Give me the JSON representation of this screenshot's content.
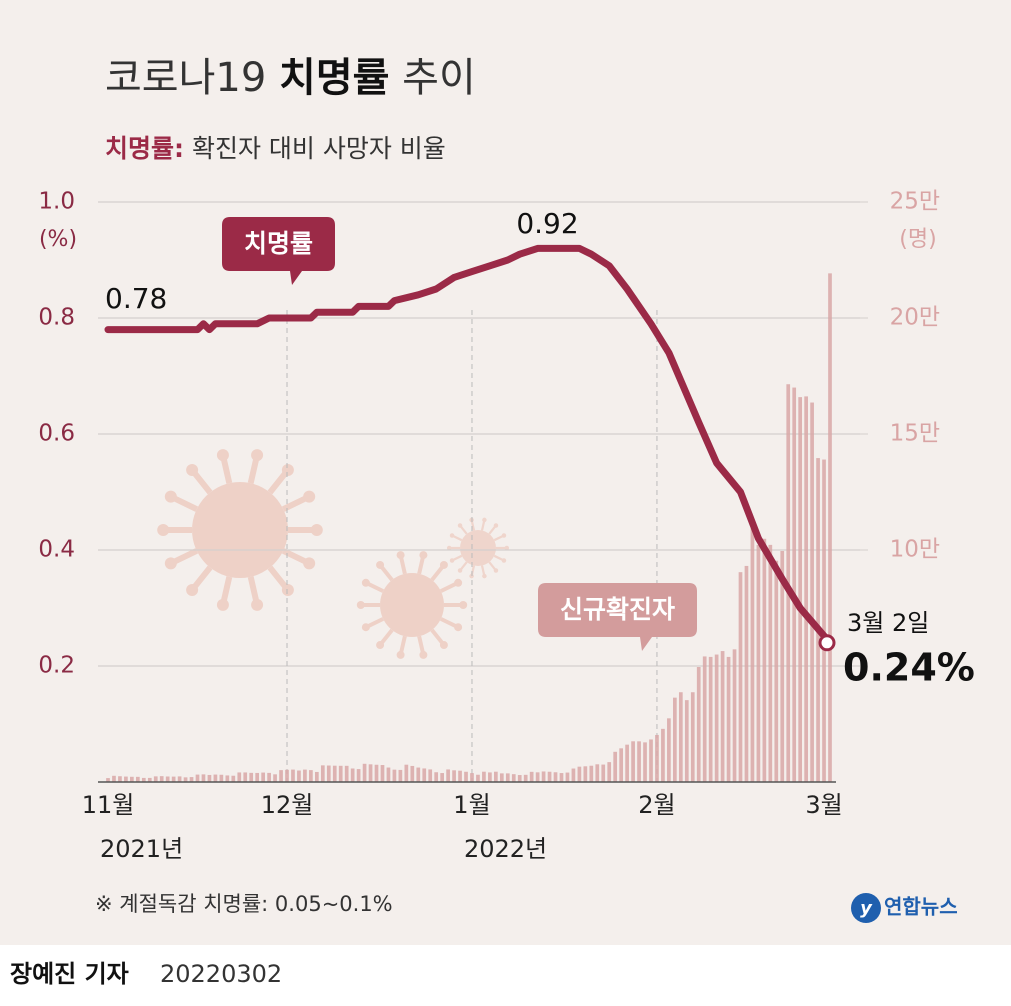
{
  "chart_data": {
    "type": "line-bar",
    "title_parts": [
      "코로나19",
      "치명률",
      "추이"
    ],
    "subtitle_parts": [
      "치명률:",
      "확진자 대비 사망자 비율"
    ],
    "y_unit": "(%)",
    "y2_unit": "(명)",
    "ylim": [
      0,
      1.0
    ],
    "yticks": [
      {
        "value": 1.0,
        "label": "1.0"
      },
      0.8,
      0.6,
      0.4,
      0.2
    ],
    "y2lim": [
      0,
      250000
    ],
    "y2ticks": [
      {
        "value": 250000,
        "label": "25만"
      },
      {
        "value": 200000,
        "label": "20만"
      },
      {
        "value": 150000,
        "label": "15만"
      },
      {
        "value": 100000,
        "label": "10만"
      }
    ],
    "xlim": [
      0,
      121
    ],
    "xticks": [
      {
        "value": 0,
        "label": "11월"
      },
      {
        "value": 30,
        "label": "12월"
      },
      {
        "value": 61,
        "label": "1월"
      },
      {
        "value": 92,
        "label": "2월"
      },
      {
        "value": 120,
        "label": "3월"
      }
    ],
    "x_year_labels": [
      {
        "value": 0,
        "label": "2021년"
      },
      {
        "value": 61,
        "label": "2022년"
      }
    ],
    "grid": true,
    "series": [
      {
        "name": "치명률",
        "type": "line",
        "color": "#9b2a47",
        "x": [
          0,
          15,
          16,
          17,
          18,
          25,
          27,
          34,
          35,
          41,
          42,
          47,
          48,
          52,
          55,
          58,
          61,
          64,
          67,
          69,
          72,
          79,
          81,
          84,
          87,
          91,
          94,
          99,
          102,
          106,
          109,
          113,
          116,
          121
        ],
        "values": [
          0.78,
          0.78,
          0.79,
          0.78,
          0.79,
          0.79,
          0.8,
          0.8,
          0.81,
          0.81,
          0.82,
          0.82,
          0.83,
          0.84,
          0.85,
          0.87,
          0.88,
          0.89,
          0.9,
          0.91,
          0.92,
          0.92,
          0.91,
          0.89,
          0.85,
          0.79,
          0.74,
          0.62,
          0.55,
          0.5,
          0.42,
          0.35,
          0.3,
          0.24
        ]
      },
      {
        "name": "신규확진자",
        "type": "bar",
        "axis": "y2",
        "color": "#d8a7a7",
        "x": [
          0,
          1,
          2,
          3,
          4,
          5,
          6,
          7,
          8,
          9,
          10,
          11,
          12,
          13,
          14,
          15,
          16,
          17,
          18,
          19,
          20,
          21,
          22,
          23,
          24,
          25,
          26,
          27,
          28,
          29,
          30,
          31,
          32,
          33,
          34,
          35,
          36,
          37,
          38,
          39,
          40,
          41,
          42,
          43,
          44,
          45,
          46,
          47,
          48,
          49,
          50,
          51,
          52,
          53,
          54,
          55,
          56,
          57,
          58,
          59,
          60,
          61,
          62,
          63,
          64,
          65,
          66,
          67,
          68,
          69,
          70,
          71,
          72,
          73,
          74,
          75,
          76,
          77,
          78,
          79,
          80,
          81,
          82,
          83,
          84,
          85,
          86,
          87,
          88,
          89,
          90,
          91,
          92,
          93,
          94,
          95,
          96,
          97,
          98,
          99,
          100,
          101,
          102,
          103,
          104,
          105,
          106,
          107,
          108,
          109,
          110,
          111,
          112,
          113,
          114,
          115,
          116,
          117,
          118,
          119,
          120,
          121
        ],
        "values": [
          1686,
          2667,
          2482,
          2343,
          2247,
          2224,
          1758,
          1760,
          2425,
          2520,
          2368,
          2324,
          2419,
          2006,
          2125,
          3187,
          3292,
          3034,
          3206,
          3120,
          2827,
          2699,
          4116,
          4115,
          3938,
          3899,
          4068,
          3925,
          3309,
          5123,
          5266,
          5352,
          4944,
          5352,
          5128,
          4325,
          7175,
          7102,
          7022,
          6977,
          6976,
          5817,
          5567,
          7850,
          7622,
          7435,
          7314,
          6236,
          5318,
          5202,
          7456,
          6919,
          6233,
          5842,
          5419,
          4207,
          3865,
          5409,
          5037,
          4875,
          4416,
          3833,
          3129,
          4443,
          4126,
          4444,
          3717,
          3713,
          3376,
          3005,
          3094,
          4388,
          4167,
          4542,
          4420,
          4193,
          3858,
          4071,
          5804,
          6603,
          6769,
          7009,
          7630,
          7513,
          8571,
          13012,
          14518,
          16096,
          17542,
          17528,
          17079,
          18342,
          20270,
          22907,
          27443,
          36362,
          38691,
          35286,
          38689,
          49567,
          54121,
          53926,
          54941,
          56431,
          53920,
          57177,
          90443,
          93135,
          109831,
          102211,
          104829,
          102211,
          95362,
          99573,
          171452,
          170016,
          165890,
          166209,
          163566,
          139626,
          138993,
          219241
        ]
      }
    ],
    "annotations": [
      {
        "x": 0,
        "y": 0.78,
        "label": "0.78"
      },
      {
        "x": 76,
        "y": 0.92,
        "label": "0.92"
      },
      {
        "x": 121,
        "y": 0.24,
        "date": "3월 2일",
        "label": "0.24%"
      }
    ],
    "footnote": "※ 계절독감 치명률: 0.05~0.1%",
    "logo": "연합뉴스",
    "byline": "장예진 기자",
    "date": "20220302"
  }
}
